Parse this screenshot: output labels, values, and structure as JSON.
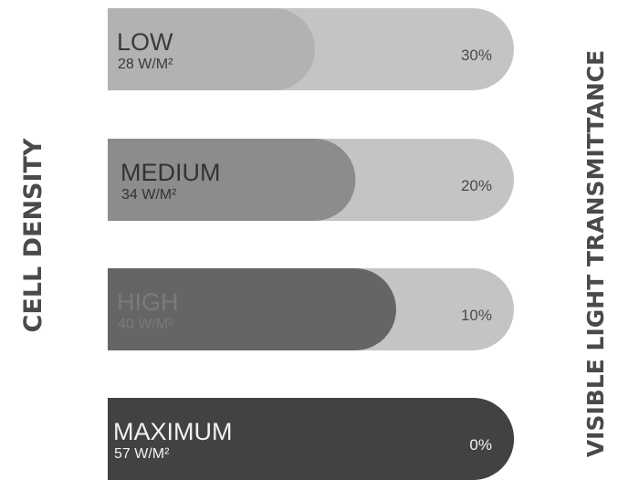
{
  "chart_data": {
    "type": "bar",
    "orientation": "horizontal",
    "ylabel": "CELL DENSITY",
    "xlabel": "VISIBLE LIGHT TRANSMITTANCE",
    "xlim": [
      0,
      100
    ],
    "grid": false,
    "legend": "none",
    "categories": [
      {
        "name": "LOW",
        "power": "28 W/M²",
        "value": 30,
        "value_label": "30%",
        "fill_fraction": 0.51,
        "track_color": "#c4c4c4",
        "fill_color": "#b2b2b2",
        "text_color": "#3a3a3a"
      },
      {
        "name": "MEDIUM",
        "power": "34 W/M²",
        "value": 20,
        "value_label": "20%",
        "fill_fraction": 0.61,
        "track_color": "#c4c4c4",
        "fill_color": "#8c8c8c",
        "text_color": "#333333"
      },
      {
        "name": "HIGH",
        "power": "40 W/M²",
        "value": 10,
        "value_label": "10%",
        "fill_fraction": 0.71,
        "track_color": "#c4c4c4",
        "fill_color": "#656565",
        "text_color": "#7a7a7a"
      },
      {
        "name": "MAXIMUM",
        "power": "57 W/M²",
        "value": 0,
        "value_label": "0%",
        "fill_fraction": 1.0,
        "track_color": "#424242",
        "fill_color": "#424242",
        "text_color": "#f2f2f2"
      }
    ]
  }
}
